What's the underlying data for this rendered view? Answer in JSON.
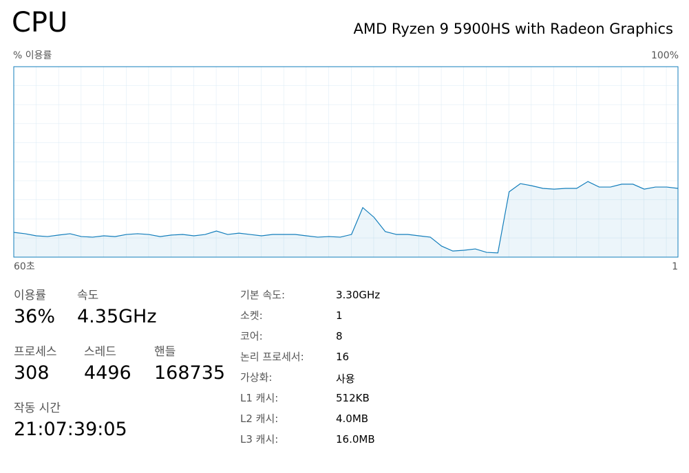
{
  "header": {
    "title": "CPU",
    "model": "AMD Ryzen 9 5900HS with Radeon Graphics"
  },
  "chart_data": {
    "type": "area",
    "y_label": "% 이용률",
    "color": "#117dbb",
    "xlim": [
      60,
      1
    ],
    "xticks": [
      {
        "value": 60,
        "label": "60초"
      },
      1
    ],
    "ylim": [
      0,
      100
    ],
    "yticks": [
      {
        "value": 100,
        "label": "100%"
      }
    ],
    "x": [
      60,
      59,
      58,
      57,
      56,
      55,
      54,
      53,
      52,
      51,
      50,
      49,
      48,
      47,
      46,
      45,
      44,
      43,
      42,
      41,
      40,
      39,
      38,
      37,
      36,
      35,
      34,
      33,
      32,
      31,
      30,
      29,
      28,
      27,
      26,
      25,
      24,
      23,
      22,
      21,
      20,
      19,
      18,
      17,
      16,
      15,
      14,
      13,
      12,
      11,
      10,
      9,
      8,
      7,
      6,
      5,
      4,
      3,
      2,
      1
    ],
    "series": [
      {
        "name": "CPU",
        "values": [
          13,
          12.3,
          11.2,
          10.8,
          11.6,
          12.3,
          10.8,
          10.5,
          11.2,
          10.8,
          11.9,
          12.3,
          11.9,
          10.8,
          11.6,
          11.9,
          11.2,
          11.9,
          13.7,
          11.9,
          12.6,
          11.9,
          11.2,
          11.9,
          11.9,
          11.9,
          11.2,
          10.5,
          10.8,
          10.5,
          11.9,
          26,
          20.9,
          13.4,
          11.9,
          11.9,
          11.2,
          10.5,
          5.8,
          3.2,
          3.6,
          4.3,
          2.5,
          2.2,
          34.3,
          38.6,
          37.5,
          36.1,
          35.7,
          36.1,
          36.1,
          39.7,
          36.8,
          36.8,
          38.3,
          38.3,
          35.7,
          36.8,
          36.8,
          36.1
        ]
      }
    ]
  },
  "stats": [
    {
      "label": "이용률",
      "value": "36%"
    },
    {
      "label": "속도",
      "value": "4.35GHz"
    },
    {
      "label": "프로세스",
      "value": "308"
    },
    {
      "label": "스레드",
      "value": "4496"
    },
    {
      "label": "핸들",
      "value": "168735"
    },
    {
      "label": "작동 시간",
      "value": "21:07:39:05"
    }
  ],
  "details": [
    [
      "기본 속도:",
      "3.30GHz"
    ],
    [
      "소켓:",
      "1"
    ],
    [
      "코어:",
      "8"
    ],
    [
      "논리 프로세서:",
      "16"
    ],
    [
      "가상화:",
      "사용"
    ],
    [
      "L1 캐시:",
      "512KB"
    ],
    [
      "L2 캐시:",
      "4.0MB"
    ],
    [
      "L3 캐시:",
      "16.0MB"
    ]
  ]
}
